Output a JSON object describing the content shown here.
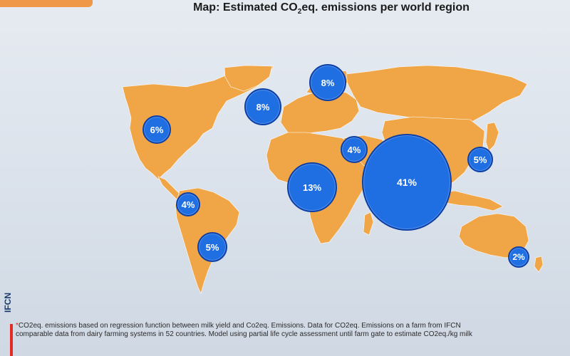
{
  "title": {
    "prefix": "Map: Estimated CO",
    "subscript": "2",
    "suffix": "eq. emissions per world region"
  },
  "logo": "IFCN",
  "footnote": {
    "marker": "*",
    "line1": "CO2eq. emissions based on regression function between milk yield and Co2eq. Emissions. Data for CO2eq. Emissions on a farm from IFCN",
    "line2": "comparable data from dairy farming systems in 52 countries. Model using partial life cycle assessment until farm gate to estimate CO2eq./kg milk"
  },
  "map": {
    "land_color": "#f0a646",
    "bubble_color": "#1f6fe3",
    "bubbles": [
      {
        "id": "north-america",
        "label": "6%"
      },
      {
        "id": "northern-europe",
        "label": "8%"
      },
      {
        "id": "russia-north",
        "label": "8%"
      },
      {
        "id": "middle-east",
        "label": "4%"
      },
      {
        "id": "east-asia",
        "label": "5%"
      },
      {
        "id": "africa",
        "label": "13%"
      },
      {
        "id": "south-asia",
        "label": "41%"
      },
      {
        "id": "south-america-north",
        "label": "4%"
      },
      {
        "id": "south-america-south",
        "label": "5%"
      },
      {
        "id": "oceania",
        "label": "2%"
      }
    ]
  }
}
